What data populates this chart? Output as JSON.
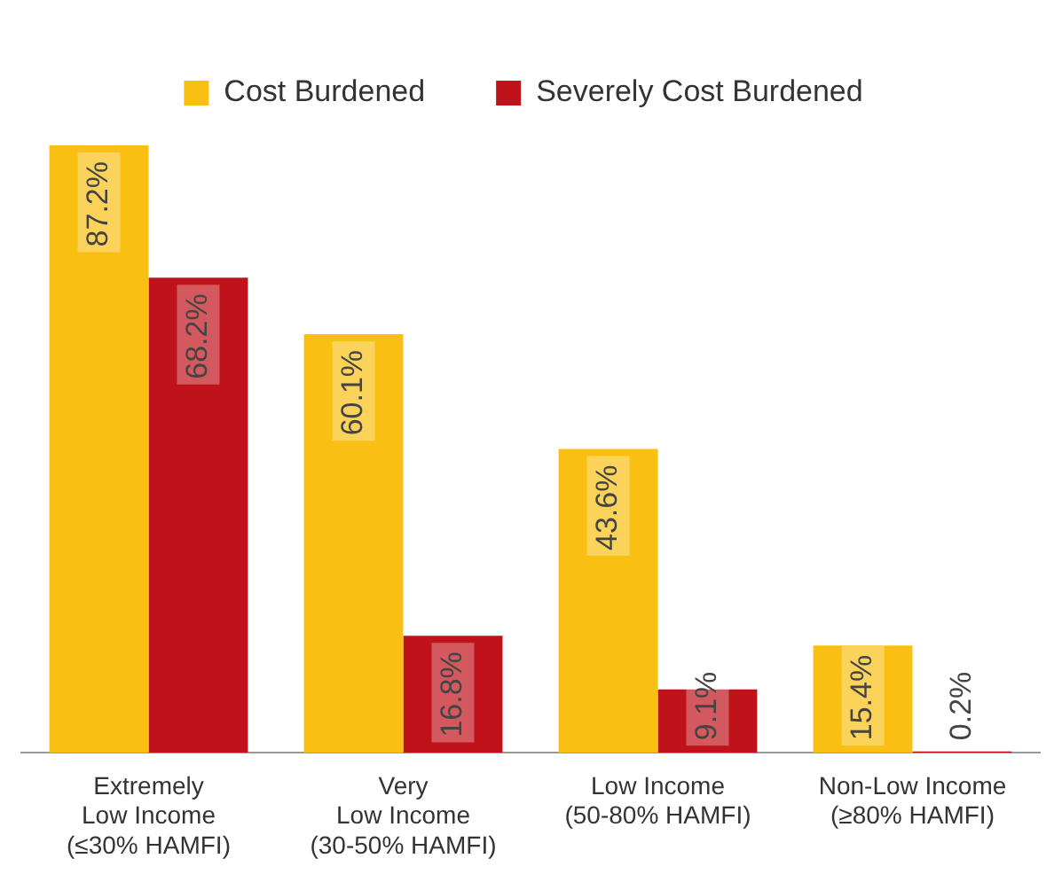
{
  "chart_data": {
    "type": "bar",
    "categories": [
      "Extremely\nLow Income\n(≤30% HAMFI)",
      "Very\nLow Income\n(30-50% HAMFI)",
      "Low Income\n(50-80% HAMFI)",
      "Non-Low Income\n(≥80% HAMFI)"
    ],
    "series": [
      {
        "name": "Cost Burdened",
        "color": "#f9c013",
        "values": [
          87.2,
          60.1,
          43.6,
          15.4
        ],
        "value_labels": [
          "87.2%",
          "60.1%",
          "43.6%",
          "15.4%"
        ]
      },
      {
        "name": "Severely Cost Burdened",
        "color": "#c0121b",
        "values": [
          68.2,
          16.8,
          9.1,
          0.2
        ],
        "value_labels": [
          "68.2%",
          "16.8%",
          "9.1%",
          "0.2%"
        ]
      }
    ],
    "tick_labels": "x",
    "legend": "top",
    "grid": false
  }
}
